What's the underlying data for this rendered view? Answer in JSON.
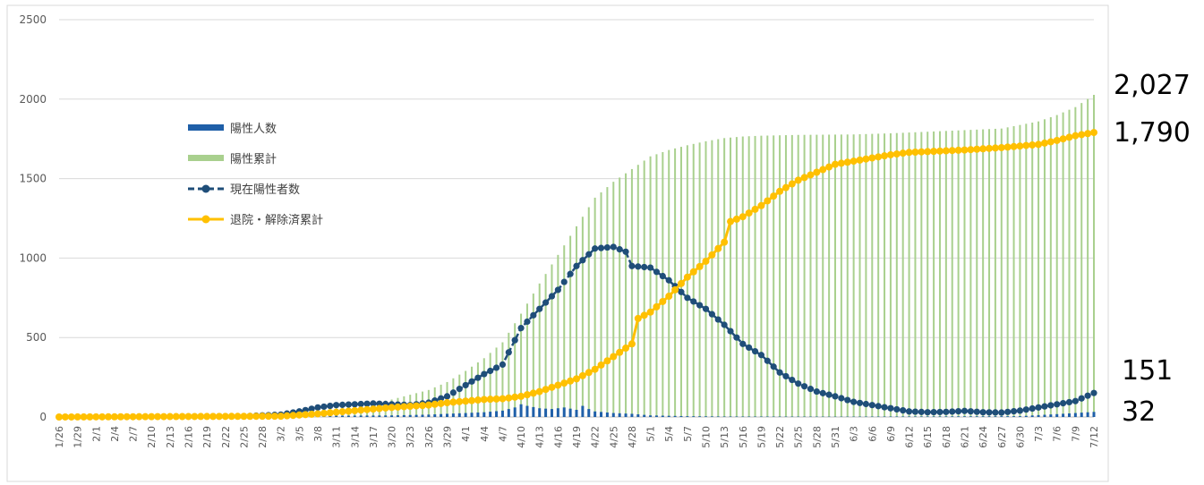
{
  "chart_data": {
    "type": "bar+line",
    "title": "",
    "xlabel": "",
    "ylabel": "",
    "ylim": [
      0,
      2500
    ],
    "yticks": [
      0,
      500,
      1000,
      1500,
      2000,
      2500
    ],
    "xlim": [
      "1/26",
      "7/12"
    ],
    "x_tick_labels": [
      "1/26",
      "1/29",
      "2/1",
      "2/4",
      "2/7",
      "2/10",
      "2/13",
      "2/16",
      "2/19",
      "2/22",
      "2/25",
      "2/28",
      "3/2",
      "3/5",
      "3/8",
      "3/11",
      "3/14",
      "3/17",
      "3/20",
      "3/23",
      "3/26",
      "3/29",
      "4/1",
      "4/4",
      "4/7",
      "4/10",
      "4/13",
      "4/16",
      "4/19",
      "4/22",
      "4/25",
      "4/28",
      "5/1",
      "5/4",
      "5/7",
      "5/10",
      "5/13",
      "5/16",
      "5/19",
      "5/22",
      "5/25",
      "5/28",
      "5/31",
      "6/3",
      "6/6",
      "6/9",
      "6/12",
      "6/15",
      "6/18",
      "6/21",
      "6/24",
      "6/27",
      "6/30",
      "7/3",
      "7/6",
      "7/9",
      "7/12"
    ],
    "grid": "horizontal",
    "legend_position": "upper-left",
    "legend": [
      {
        "name": "陽性人数",
        "kind": "bar",
        "color": "#1f5fa8"
      },
      {
        "name": "陽性累計",
        "kind": "bar",
        "color": "#a9d08e"
      },
      {
        "name": "現在陽性者数",
        "kind": "line-dashed-marker",
        "color": "#1f4e79"
      },
      {
        "name": "退院・解除済累計",
        "kind": "line-marker",
        "color": "#ffc000"
      }
    ],
    "series_points": {
      "daily_positive": [
        [
          "1/26",
          0
        ],
        [
          "2/28",
          3
        ],
        [
          "3/5",
          5
        ],
        [
          "3/11",
          8
        ],
        [
          "3/20",
          10
        ],
        [
          "3/26",
          15
        ],
        [
          "3/29",
          20
        ],
        [
          "4/1",
          25
        ],
        [
          "4/4",
          30
        ],
        [
          "4/7",
          40
        ],
        [
          "4/9",
          60
        ],
        [
          "4/10",
          80
        ],
        [
          "4/11",
          70
        ],
        [
          "4/13",
          55
        ],
        [
          "4/15",
          50
        ],
        [
          "4/17",
          60
        ],
        [
          "4/19",
          45
        ],
        [
          "4/20",
          70
        ],
        [
          "4/21",
          50
        ],
        [
          "4/22",
          35
        ],
        [
          "4/25",
          25
        ],
        [
          "4/28",
          20
        ],
        [
          "5/1",
          10
        ],
        [
          "5/7",
          5
        ],
        [
          "5/13",
          3
        ],
        [
          "6/1",
          2
        ],
        [
          "6/30",
          5
        ],
        [
          "7/3",
          12
        ],
        [
          "7/6",
          18
        ],
        [
          "7/9",
          25
        ],
        [
          "7/12",
          32
        ]
      ],
      "cumulative_positive": [
        [
          "1/26",
          1
        ],
        [
          "2/28",
          10
        ],
        [
          "3/5",
          30
        ],
        [
          "3/11",
          70
        ],
        [
          "3/17",
          90
        ],
        [
          "3/20",
          110
        ],
        [
          "3/23",
          140
        ],
        [
          "3/26",
          170
        ],
        [
          "3/29",
          220
        ],
        [
          "4/1",
          290
        ],
        [
          "4/4",
          370
        ],
        [
          "4/7",
          470
        ],
        [
          "4/10",
          650
        ],
        [
          "4/13",
          840
        ],
        [
          "4/16",
          1020
        ],
        [
          "4/19",
          1200
        ],
        [
          "4/22",
          1380
        ],
        [
          "4/25",
          1480
        ],
        [
          "4/28",
          1560
        ],
        [
          "5/1",
          1640
        ],
        [
          "5/4",
          1680
        ],
        [
          "5/7",
          1710
        ],
        [
          "5/10",
          1735
        ],
        [
          "5/13",
          1755
        ],
        [
          "5/16",
          1765
        ],
        [
          "5/19",
          1770
        ],
        [
          "5/25",
          1775
        ],
        [
          "6/3",
          1778
        ],
        [
          "6/9",
          1785
        ],
        [
          "6/15",
          1795
        ],
        [
          "6/21",
          1805
        ],
        [
          "6/27",
          1815
        ],
        [
          "7/3",
          1860
        ],
        [
          "7/6",
          1900
        ],
        [
          "7/9",
          1950
        ],
        [
          "7/12",
          2027
        ]
      ],
      "current_positive": [
        [
          "1/26",
          0
        ],
        [
          "2/25",
          5
        ],
        [
          "3/2",
          15
        ],
        [
          "3/5",
          35
        ],
        [
          "3/8",
          60
        ],
        [
          "3/11",
          75
        ],
        [
          "3/17",
          85
        ],
        [
          "3/20",
          80
        ],
        [
          "3/23",
          75
        ],
        [
          "3/26",
          90
        ],
        [
          "3/29",
          130
        ],
        [
          "4/1",
          200
        ],
        [
          "4/4",
          270
        ],
        [
          "4/7",
          330
        ],
        [
          "4/10",
          560
        ],
        [
          "4/13",
          680
        ],
        [
          "4/16",
          800
        ],
        [
          "4/19",
          950
        ],
        [
          "4/22",
          1060
        ],
        [
          "4/25",
          1070
        ],
        [
          "4/27",
          1040
        ],
        [
          "4/28",
          950
        ],
        [
          "5/1",
          940
        ],
        [
          "5/4",
          860
        ],
        [
          "5/7",
          750
        ],
        [
          "5/10",
          680
        ],
        [
          "5/13",
          580
        ],
        [
          "5/16",
          460
        ],
        [
          "5/19",
          390
        ],
        [
          "5/22",
          280
        ],
        [
          "5/25",
          210
        ],
        [
          "5/28",
          160
        ],
        [
          "5/31",
          130
        ],
        [
          "6/3",
          95
        ],
        [
          "6/6",
          75
        ],
        [
          "6/9",
          55
        ],
        [
          "6/12",
          35
        ],
        [
          "6/15",
          30
        ],
        [
          "6/18",
          32
        ],
        [
          "6/21",
          38
        ],
        [
          "6/24",
          30
        ],
        [
          "6/27",
          28
        ],
        [
          "6/30",
          40
        ],
        [
          "7/3",
          60
        ],
        [
          "7/6",
          80
        ],
        [
          "7/9",
          100
        ],
        [
          "7/12",
          151
        ]
      ],
      "cumulative_recovered": [
        [
          "1/26",
          0
        ],
        [
          "3/2",
          5
        ],
        [
          "3/8",
          20
        ],
        [
          "3/14",
          40
        ],
        [
          "3/17",
          50
        ],
        [
          "3/20",
          60
        ],
        [
          "3/26",
          75
        ],
        [
          "3/29",
          90
        ],
        [
          "4/1",
          100
        ],
        [
          "4/4",
          110
        ],
        [
          "4/7",
          115
        ],
        [
          "4/10",
          130
        ],
        [
          "4/13",
          160
        ],
        [
          "4/16",
          200
        ],
        [
          "4/19",
          240
        ],
        [
          "4/22",
          300
        ],
        [
          "4/25",
          380
        ],
        [
          "4/28",
          460
        ],
        [
          "4/29",
          620
        ],
        [
          "5/1",
          660
        ],
        [
          "5/4",
          760
        ],
        [
          "5/7",
          880
        ],
        [
          "5/10",
          980
        ],
        [
          "5/13",
          1100
        ],
        [
          "5/14",
          1230
        ],
        [
          "5/16",
          1260
        ],
        [
          "5/19",
          1330
        ],
        [
          "5/22",
          1420
        ],
        [
          "5/25",
          1490
        ],
        [
          "5/28",
          1540
        ],
        [
          "5/31",
          1590
        ],
        [
          "6/3",
          1610
        ],
        [
          "6/6",
          1630
        ],
        [
          "6/9",
          1650
        ],
        [
          "6/12",
          1665
        ],
        [
          "6/15",
          1670
        ],
        [
          "6/21",
          1680
        ],
        [
          "6/27",
          1695
        ],
        [
          "7/3",
          1715
        ],
        [
          "7/6",
          1740
        ],
        [
          "7/9",
          1770
        ],
        [
          "7/12",
          1790
        ]
      ]
    }
  },
  "callouts": {
    "cumulative": "2,027",
    "recovered": "1,790",
    "current": "151",
    "daily": "32"
  }
}
